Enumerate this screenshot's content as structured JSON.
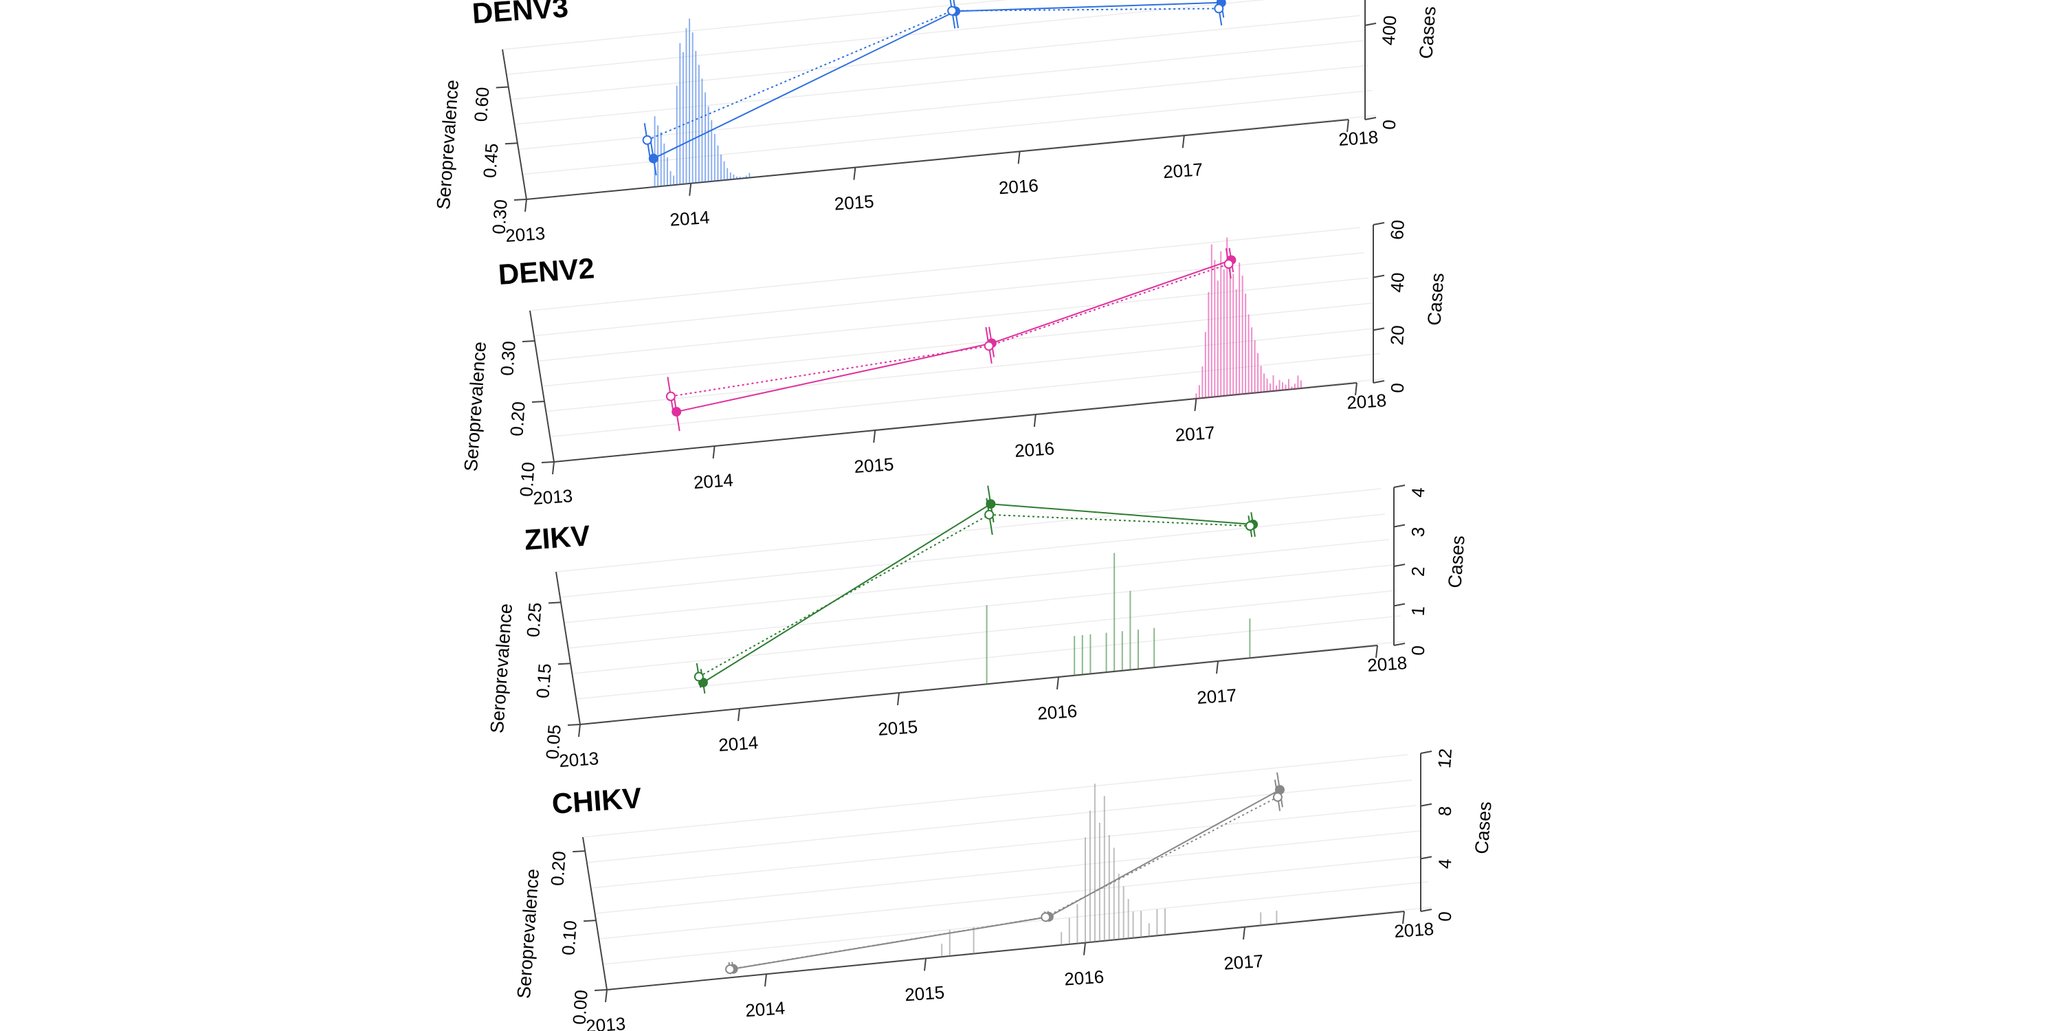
{
  "chart_data": [
    {
      "type": "line",
      "title": "DENV3",
      "color": "#2f6fe0",
      "ylabel": "Seroprevalence",
      "ylabel_right": "Cases",
      "ylim": [
        0.3,
        0.7
      ],
      "yticks": [
        "0.30",
        "0.45",
        "0.60"
      ],
      "cases_ylim": [
        0,
        700
      ],
      "cases_ticks": [
        "0",
        "400"
      ],
      "xlim": [
        2013,
        2018
      ],
      "xticks": [
        "2013",
        "2014",
        "2015",
        "2016",
        "2017",
        "2018"
      ],
      "series": [
        {
          "style": "solid, filled points",
          "x": [
            2013.8,
            2015.75,
            2017.35
          ],
          "y": [
            0.375,
            0.685,
            0.64
          ],
          "ci_low": [
            0.33,
            0.64,
            0.6
          ],
          "ci_high": [
            0.42,
            0.73,
            0.69
          ]
        },
        {
          "style": "dotted, open points",
          "x": [
            2013.78,
            2015.73,
            2017.33
          ],
          "y": [
            0.425,
            0.687,
            0.625
          ],
          "ci_low": [
            0.38,
            0.64,
            0.58
          ],
          "ci_high": [
            0.47,
            0.73,
            0.67
          ]
        }
      ],
      "cases": {
        "start": 2013.78,
        "step": 0.0192,
        "values": [
          300,
          260,
          230,
          180,
          120,
          60,
          40,
          420,
          600,
          560,
          660,
          700,
          640,
          560,
          500,
          440,
          380,
          320,
          260,
          200,
          150,
          110,
          80,
          50,
          30,
          20,
          10,
          8,
          5,
          10,
          20
        ]
      }
    },
    {
      "type": "line",
      "title": "DENV2",
      "color": "#e0309e",
      "ylabel": "Seroprevalence",
      "ylabel_right": "Cases",
      "ylim": [
        0.1,
        0.35
      ],
      "yticks": [
        "0.10",
        "0.20",
        "0.30"
      ],
      "cases_ylim": [
        0,
        60
      ],
      "cases_ticks": [
        "0",
        "20",
        "40",
        "60"
      ],
      "xlim": [
        2013,
        2018
      ],
      "xticks": [
        "2013",
        "2014",
        "2015",
        "2016",
        "2017",
        "2018"
      ],
      "series": [
        {
          "style": "solid, filled points",
          "x": [
            2013.8,
            2015.8,
            2017.35
          ],
          "y": [
            0.162,
            0.223,
            0.32
          ],
          "ci_low": [
            0.13,
            0.2,
            0.3
          ],
          "ci_high": [
            0.19,
            0.25,
            0.34
          ]
        },
        {
          "style": "dotted, open points",
          "x": [
            2013.78,
            2015.78,
            2017.33
          ],
          "y": [
            0.188,
            0.219,
            0.314
          ],
          "ci_low": [
            0.16,
            0.19,
            0.29
          ],
          "ci_high": [
            0.22,
            0.25,
            0.34
          ]
        }
      ],
      "cases": {
        "start": 2017.0,
        "step": 0.0192,
        "values": [
          2,
          5,
          12,
          25,
          40,
          58,
          52,
          44,
          55,
          48,
          60,
          52,
          46,
          40,
          50,
          45,
          38,
          30,
          25,
          20,
          15,
          10,
          7,
          5,
          3,
          6,
          2,
          4,
          3,
          2,
          4,
          1,
          2,
          5,
          3
        ]
      }
    },
    {
      "type": "line",
      "title": "ZIKV",
      "color": "#2e7d32",
      "ylabel": "Seroprevalence",
      "ylabel_right": "Cases",
      "ylim": [
        0.05,
        0.3
      ],
      "yticks": [
        "0.05",
        "0.15",
        "0.25"
      ],
      "cases_ylim": [
        0,
        4
      ],
      "cases_ticks": [
        "0",
        "1",
        "2",
        "3",
        "4"
      ],
      "xlim": [
        2013,
        2018
      ],
      "xticks": [
        "2013",
        "2014",
        "2015",
        "2016",
        "2017",
        "2018"
      ],
      "series": [
        {
          "style": "solid, filled points",
          "x": [
            2013.8,
            2015.75,
            2017.35
          ],
          "y": [
            0.098,
            0.34,
            0.265
          ],
          "ci_low": [
            0.08,
            0.31,
            0.245
          ],
          "ci_high": [
            0.12,
            0.37,
            0.285
          ]
        },
        {
          "style": "dotted, open points",
          "x": [
            2013.78,
            2015.73,
            2017.33
          ],
          "y": [
            0.108,
            0.323,
            0.263
          ],
          "ci_low": [
            0.09,
            0.29,
            0.245
          ],
          "ci_high": [
            0.13,
            0.35,
            0.28
          ]
        }
      ],
      "cases": {
        "x": [
          2015.55,
          2016.1,
          2016.15,
          2016.2,
          2016.3,
          2016.35,
          2016.4,
          2016.45,
          2016.5,
          2016.6,
          2017.2
        ],
        "values": [
          2,
          1,
          1,
          1,
          1,
          3,
          1,
          2,
          1,
          1,
          1
        ]
      }
    },
    {
      "type": "line",
      "title": "CHIKV",
      "color": "#888888",
      "ylabel": "Seroprevalence",
      "ylabel_right": "Cases",
      "ylim": [
        0.0,
        0.22
      ],
      "yticks": [
        "0.00",
        "0.10",
        "0.20"
      ],
      "cases_ylim": [
        0,
        12
      ],
      "cases_ticks": [
        "0",
        "4",
        "8",
        "12"
      ],
      "xlim": [
        2013,
        2018
      ],
      "xticks": [
        "2013",
        "2014",
        "2015",
        "2016",
        "2017",
        "2018"
      ],
      "series": [
        {
          "style": "solid, filled points",
          "x": [
            2013.8,
            2015.8,
            2017.35
          ],
          "y": [
            0.012,
            0.042,
            0.19
          ],
          "ci_low": [
            0.005,
            0.035,
            0.165
          ],
          "ci_high": [
            0.022,
            0.05,
            0.215
          ]
        },
        {
          "style": "dotted, open points",
          "x": [
            2013.78,
            2015.78,
            2017.33
          ],
          "y": [
            0.012,
            0.042,
            0.18
          ],
          "ci_low": [
            0.005,
            0.035,
            0.16
          ],
          "ci_high": [
            0.022,
            0.05,
            0.205
          ]
        }
      ],
      "cases": {
        "x": [
          2015.1,
          2015.15,
          2015.3,
          2015.85,
          2015.9,
          2015.95,
          2016.0,
          2016.03,
          2016.06,
          2016.09,
          2016.12,
          2016.15,
          2016.18,
          2016.21,
          2016.24,
          2016.27,
          2016.3,
          2016.35,
          2016.4,
          2016.45,
          2016.5,
          2017.1,
          2017.2
        ],
        "values": [
          1,
          2,
          2,
          1,
          2,
          3,
          8,
          10,
          12,
          9,
          11,
          8,
          7,
          5,
          4,
          3,
          2,
          2,
          1,
          2,
          2,
          1,
          1
        ]
      }
    }
  ]
}
